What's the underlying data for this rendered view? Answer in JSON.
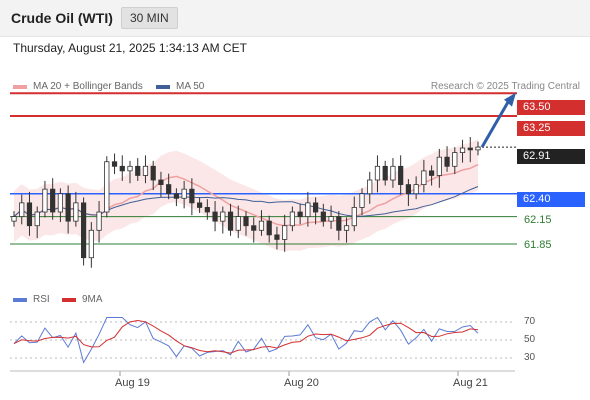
{
  "header": {
    "title": "Crude Oil (WTI)",
    "timeframe": "30 MIN"
  },
  "timestamp": "Thursday, August 21, 2025 1:34:13 AM CET",
  "legend": {
    "ma20": "MA 20 + Bollinger Bands",
    "ma50": "MA 50"
  },
  "credit": "Research © 2025 Trading Central",
  "rsi_legend": {
    "rsi": "RSI",
    "ma": "9MA"
  },
  "colors": {
    "red": "#d32f2f",
    "blue": "#2962ff",
    "green": "#2e7d32",
    "current": "#222222",
    "arrow": "#2e5fa8",
    "ma20": "#f0a0a0",
    "ma50": "#3f5f96"
  },
  "chart_data": {
    "type": "candlestick",
    "price_ylim": [
      61.2,
      63.8
    ],
    "x_tick_labels": [
      "Aug 19",
      "Aug 20",
      "Aug 21"
    ],
    "current_price": "62.91",
    "levels": [
      {
        "label": "63.50",
        "value": 63.5,
        "style": "resistance"
      },
      {
        "label": "63.25",
        "value": 63.25,
        "style": "resistance"
      },
      {
        "label": "62.40",
        "value": 62.4,
        "style": "pivot"
      },
      {
        "label": "62.15",
        "value": 62.15,
        "style": "support"
      },
      {
        "label": "61.85",
        "value": 61.85,
        "style": "support"
      }
    ],
    "closes": [
      62.15,
      62.3,
      62.05,
      62.2,
      62.45,
      62.2,
      62.4,
      62.1,
      62.3,
      61.7,
      62.0,
      62.2,
      62.75,
      62.7,
      62.65,
      62.7,
      62.6,
      62.7,
      62.55,
      62.5,
      62.4,
      62.35,
      62.45,
      62.3,
      62.25,
      62.2,
      62.1,
      62.2,
      62.0,
      62.15,
      62.05,
      62.0,
      62.1,
      61.95,
      61.9,
      62.05,
      62.2,
      62.15,
      62.3,
      62.2,
      62.1,
      62.15,
      62.0,
      62.05,
      62.25,
      62.4,
      62.55,
      62.7,
      62.55,
      62.7,
      62.5,
      62.4,
      62.5,
      62.65,
      62.6,
      62.8,
      62.7,
      62.85,
      62.9,
      62.88,
      62.91
    ],
    "rsi_ticks": [
      70,
      50,
      30
    ]
  }
}
